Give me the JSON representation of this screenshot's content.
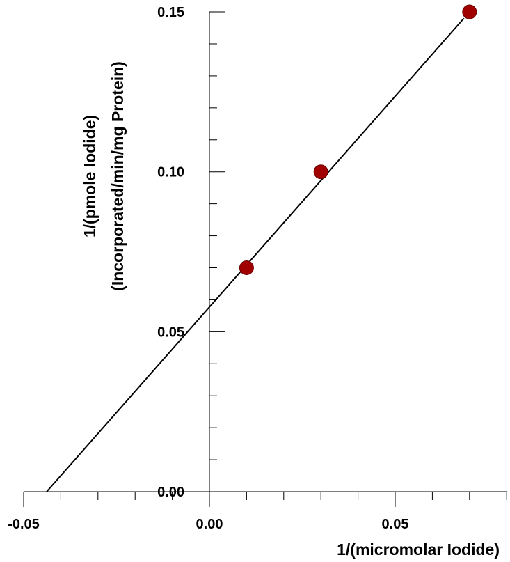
{
  "chart_data": {
    "type": "scatter",
    "title": "",
    "xlabel": "1/(micromolar Iodide)",
    "ylabel_lines": [
      "1/(pmole Iodide)",
      "(Incorporated/min/mg Protein)"
    ],
    "xlim": [
      -0.05,
      0.08
    ],
    "ylim": [
      0,
      0.15
    ],
    "x_ticks": [
      -0.05,
      0.0,
      0.05
    ],
    "x_tick_labels": [
      "-0.05",
      "0.00",
      "0.05"
    ],
    "x_minor_step": 0.01,
    "y_ticks": [
      0.0,
      0.05,
      0.1,
      0.15
    ],
    "y_tick_labels": [
      "0.00",
      "0.05",
      "0.10",
      "0.15"
    ],
    "y_minor_step": 0.01,
    "grid": false,
    "series": [
      {
        "x": [
          0.01,
          0.03,
          0.07
        ],
        "y": [
          0.07,
          0.1,
          0.15
        ],
        "marker_color": "#a00000"
      }
    ],
    "fit_line": {
      "x": [
        -0.0438,
        0.0685
      ],
      "y": [
        0.0,
        0.148
      ],
      "color": "#000000"
    }
  }
}
